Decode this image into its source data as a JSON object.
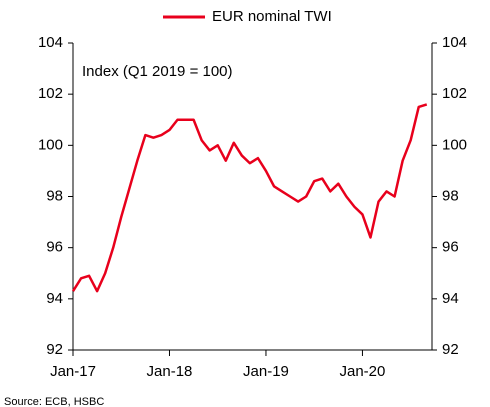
{
  "chart_data": {
    "type": "line",
    "legend": "EUR nominal TWI",
    "annotation": "Index (Q1 2019 = 100)",
    "source": "Source: ECB, HSBC",
    "categories": [
      "Jan-17",
      null,
      null,
      null,
      null,
      null,
      null,
      null,
      null,
      null,
      null,
      null,
      "Jan-18",
      null,
      null,
      null,
      null,
      null,
      null,
      null,
      null,
      null,
      null,
      null,
      "Jan-19",
      null,
      null,
      null,
      null,
      null,
      null,
      null,
      null,
      null,
      null,
      null,
      "Jan-20",
      null,
      null,
      null,
      null,
      null,
      null,
      null,
      null
    ],
    "series": [
      {
        "name": "EUR nominal TWI",
        "color": "#e8001c",
        "values": [
          94.3,
          94.8,
          94.9,
          94.3,
          95.0,
          96.0,
          97.2,
          98.3,
          99.4,
          100.4,
          100.3,
          100.4,
          100.6,
          101.0,
          101.0,
          101.0,
          100.2,
          99.8,
          100.0,
          99.4,
          100.1,
          99.6,
          99.3,
          99.5,
          99.0,
          98.4,
          98.2,
          98.0,
          97.8,
          98.0,
          98.6,
          98.7,
          98.2,
          98.5,
          98.0,
          97.6,
          97.3,
          96.4,
          97.8,
          98.2,
          98.0,
          99.4,
          100.2,
          101.5,
          101.6
        ]
      }
    ],
    "ylim": [
      92,
      104
    ],
    "yticks": [
      92,
      94,
      96,
      98,
      100,
      102,
      104
    ],
    "grid": false
  }
}
